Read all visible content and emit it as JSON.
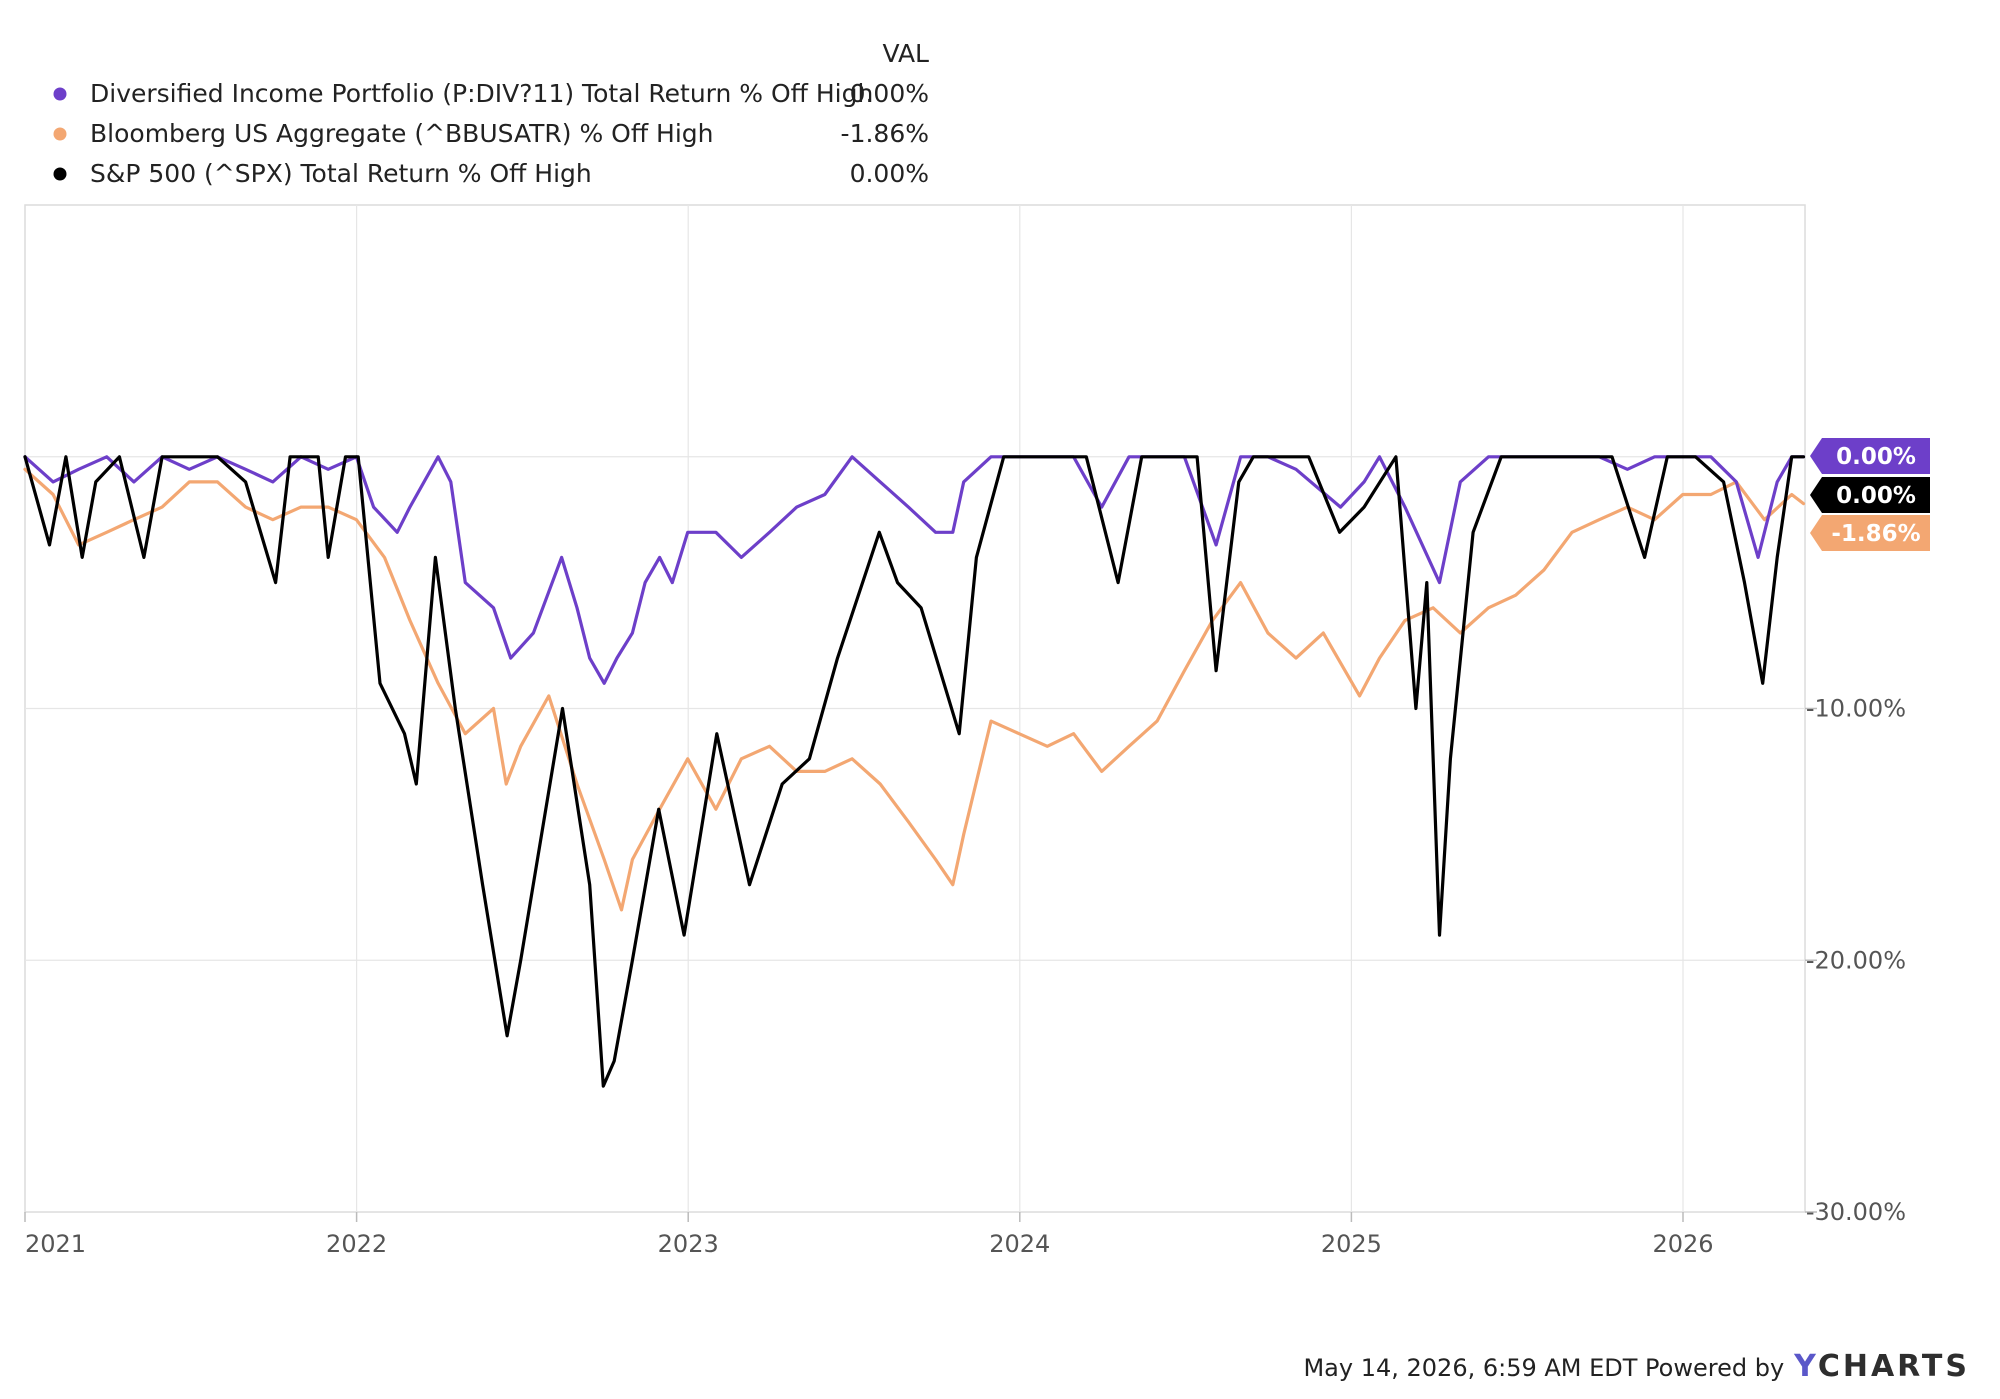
{
  "legend": {
    "header": "VAL",
    "items": [
      {
        "name": "Diversified Income Portfolio (P:DIV?11) Total Return % Off High",
        "val": "0.00%",
        "color": "#6d3fc9"
      },
      {
        "name": "Bloomberg US Aggregate (^BBUSATR) % Off High",
        "val": "-1.86%",
        "color": "#f3a772"
      },
      {
        "name": "S&P 500 (^SPX) Total Return % Off High",
        "val": "0.00%",
        "color": "#000000"
      }
    ]
  },
  "chart_data": {
    "type": "line",
    "x_axis": {
      "ticks": [
        "2021",
        "2022",
        "2023",
        "2024",
        "2025",
        "2026"
      ]
    },
    "y_axis": {
      "ticks": [
        "-10.00%",
        "-20.00%",
        "-30.00%"
      ],
      "range": [
        -30,
        10
      ],
      "grid": true
    },
    "series": [
      {
        "name": "Diversified Income Portfolio (P:DIV?11) Total Return % Off High",
        "color": "#6d3fc9",
        "end_label": "0.00%",
        "points": [
          [
            "2021-01-01",
            0
          ],
          [
            "2021-02-01",
            -1
          ],
          [
            "2021-03-01",
            -0.5
          ],
          [
            "2021-04-01",
            0
          ],
          [
            "2021-05-01",
            -1
          ],
          [
            "2021-06-01",
            0
          ],
          [
            "2021-07-01",
            -0.5
          ],
          [
            "2021-08-01",
            0
          ],
          [
            "2021-09-01",
            -0.5
          ],
          [
            "2021-10-01",
            -1
          ],
          [
            "2021-11-01",
            0
          ],
          [
            "2021-12-01",
            -0.5
          ],
          [
            "2022-01-01",
            0
          ],
          [
            "2022-01-20",
            -2
          ],
          [
            "2022-02-15",
            -3
          ],
          [
            "2022-03-01",
            -2
          ],
          [
            "2022-04-01",
            0
          ],
          [
            "2022-04-15",
            -1
          ],
          [
            "2022-05-01",
            -5
          ],
          [
            "2022-06-01",
            -6
          ],
          [
            "2022-06-20",
            -8
          ],
          [
            "2022-07-15",
            -7
          ],
          [
            "2022-08-15",
            -4
          ],
          [
            "2022-09-01",
            -6
          ],
          [
            "2022-09-15",
            -8
          ],
          [
            "2022-10-01",
            -9
          ],
          [
            "2022-10-15",
            -8
          ],
          [
            "2022-11-01",
            -7
          ],
          [
            "2022-11-15",
            -5
          ],
          [
            "2022-12-01",
            -4
          ],
          [
            "2022-12-15",
            -5
          ],
          [
            "2023-01-01",
            -3
          ],
          [
            "2023-02-01",
            -3
          ],
          [
            "2023-03-01",
            -4
          ],
          [
            "2023-04-01",
            -3
          ],
          [
            "2023-05-01",
            -2
          ],
          [
            "2023-06-01",
            -1.5
          ],
          [
            "2023-07-01",
            0
          ],
          [
            "2023-08-01",
            -1
          ],
          [
            "2023-09-01",
            -2
          ],
          [
            "2023-10-01",
            -3
          ],
          [
            "2023-10-20",
            -3
          ],
          [
            "2023-11-01",
            -1
          ],
          [
            "2023-12-01",
            0
          ],
          [
            "2024-01-01",
            0
          ],
          [
            "2024-02-01",
            0
          ],
          [
            "2024-03-01",
            0
          ],
          [
            "2024-04-01",
            -2
          ],
          [
            "2024-05-01",
            0
          ],
          [
            "2024-06-01",
            0
          ],
          [
            "2024-07-01",
            0
          ],
          [
            "2024-08-05",
            -3.5
          ],
          [
            "2024-09-01",
            0
          ],
          [
            "2024-10-01",
            0
          ],
          [
            "2024-11-01",
            -0.5
          ],
          [
            "2024-12-20",
            -2
          ],
          [
            "2025-01-15",
            -1
          ],
          [
            "2025-02-01",
            0
          ],
          [
            "2025-03-01",
            -2
          ],
          [
            "2025-04-08",
            -5
          ],
          [
            "2025-05-01",
            -1
          ],
          [
            "2025-06-01",
            0
          ],
          [
            "2025-07-01",
            0
          ],
          [
            "2025-08-01",
            0
          ],
          [
            "2025-09-01",
            0
          ],
          [
            "2025-10-01",
            0
          ],
          [
            "2025-11-01",
            -0.5
          ],
          [
            "2025-12-01",
            0
          ],
          [
            "2026-01-01",
            0
          ],
          [
            "2026-02-01",
            0
          ],
          [
            "2026-03-01",
            -1
          ],
          [
            "2026-03-25",
            -4
          ],
          [
            "2026-04-15",
            -1
          ],
          [
            "2026-05-01",
            0
          ],
          [
            "2026-05-14",
            0
          ]
        ]
      },
      {
        "name": "Bloomberg US Aggregate (^BBUSATR) % Off High",
        "color": "#f3a772",
        "end_label": "-1.86%",
        "points": [
          [
            "2021-01-01",
            -0.5
          ],
          [
            "2021-02-01",
            -1.5
          ],
          [
            "2021-03-01",
            -3.5
          ],
          [
            "2021-04-01",
            -3
          ],
          [
            "2021-05-01",
            -2.5
          ],
          [
            "2021-06-01",
            -2
          ],
          [
            "2021-07-01",
            -1
          ],
          [
            "2021-08-01",
            -1
          ],
          [
            "2021-09-01",
            -2
          ],
          [
            "2021-10-01",
            -2.5
          ],
          [
            "2021-11-01",
            -2
          ],
          [
            "2021-12-01",
            -2
          ],
          [
            "2022-01-01",
            -2.5
          ],
          [
            "2022-02-01",
            -4
          ],
          [
            "2022-03-01",
            -6.5
          ],
          [
            "2022-04-01",
            -9
          ],
          [
            "2022-05-01",
            -11
          ],
          [
            "2022-06-01",
            -10
          ],
          [
            "2022-06-15",
            -13
          ],
          [
            "2022-07-01",
            -11.5
          ],
          [
            "2022-08-01",
            -9.5
          ],
          [
            "2022-09-01",
            -13
          ],
          [
            "2022-10-01",
            -16
          ],
          [
            "2022-10-20",
            -18
          ],
          [
            "2022-11-01",
            -16
          ],
          [
            "2022-12-01",
            -14
          ],
          [
            "2023-01-01",
            -12
          ],
          [
            "2023-02-01",
            -14
          ],
          [
            "2023-03-01",
            -12
          ],
          [
            "2023-04-01",
            -11.5
          ],
          [
            "2023-05-01",
            -12.5
          ],
          [
            "2023-06-01",
            -12.5
          ],
          [
            "2023-07-01",
            -12
          ],
          [
            "2023-08-01",
            -13
          ],
          [
            "2023-09-01",
            -14.5
          ],
          [
            "2023-10-01",
            -16
          ],
          [
            "2023-10-20",
            -17
          ],
          [
            "2023-11-01",
            -15
          ],
          [
            "2023-12-01",
            -10.5
          ],
          [
            "2024-01-01",
            -11
          ],
          [
            "2024-02-01",
            -11.5
          ],
          [
            "2024-03-01",
            -11
          ],
          [
            "2024-04-01",
            -12.5
          ],
          [
            "2024-05-01",
            -11.5
          ],
          [
            "2024-06-01",
            -10.5
          ],
          [
            "2024-07-01",
            -8.5
          ],
          [
            "2024-08-01",
            -6.5
          ],
          [
            "2024-09-01",
            -5
          ],
          [
            "2024-10-01",
            -7
          ],
          [
            "2024-11-01",
            -8
          ],
          [
            "2024-12-01",
            -7
          ],
          [
            "2025-01-10",
            -9.5
          ],
          [
            "2025-02-01",
            -8
          ],
          [
            "2025-03-01",
            -6.5
          ],
          [
            "2025-04-01",
            -6
          ],
          [
            "2025-05-01",
            -7
          ],
          [
            "2025-06-01",
            -6
          ],
          [
            "2025-07-01",
            -5.5
          ],
          [
            "2025-08-01",
            -4.5
          ],
          [
            "2025-09-01",
            -3
          ],
          [
            "2025-10-01",
            -2.5
          ],
          [
            "2025-11-01",
            -2
          ],
          [
            "2025-12-01",
            -2.5
          ],
          [
            "2026-01-01",
            -1.5
          ],
          [
            "2026-02-01",
            -1.5
          ],
          [
            "2026-03-01",
            -1
          ],
          [
            "2026-04-01",
            -2.5
          ],
          [
            "2026-05-01",
            -1.5
          ],
          [
            "2026-05-14",
            -1.86
          ]
        ]
      },
      {
        "name": "S&P 500 (^SPX) Total Return % Off High",
        "color": "#000000",
        "end_label": "0.00%",
        "points": [
          [
            "2021-01-01",
            0
          ],
          [
            "2021-01-28",
            -3.5
          ],
          [
            "2021-02-15",
            0
          ],
          [
            "2021-03-05",
            -4
          ],
          [
            "2021-03-20",
            -1
          ],
          [
            "2021-04-15",
            0
          ],
          [
            "2021-05-12",
            -4
          ],
          [
            "2021-06-01",
            0
          ],
          [
            "2021-07-01",
            0
          ],
          [
            "2021-08-01",
            0
          ],
          [
            "2021-09-01",
            -1
          ],
          [
            "2021-10-04",
            -5
          ],
          [
            "2021-10-20",
            0
          ],
          [
            "2021-11-20",
            0
          ],
          [
            "2021-12-01",
            -4
          ],
          [
            "2021-12-20",
            0
          ],
          [
            "2022-01-03",
            0
          ],
          [
            "2022-01-27",
            -9
          ],
          [
            "2022-02-23",
            -11
          ],
          [
            "2022-03-08",
            -13
          ],
          [
            "2022-03-29",
            -4
          ],
          [
            "2022-04-20",
            -10
          ],
          [
            "2022-05-20",
            -17
          ],
          [
            "2022-06-16",
            -23
          ],
          [
            "2022-07-01",
            -20
          ],
          [
            "2022-08-16",
            -10
          ],
          [
            "2022-09-15",
            -17
          ],
          [
            "2022-09-30",
            -25
          ],
          [
            "2022-10-12",
            -24
          ],
          [
            "2022-11-01",
            -20
          ],
          [
            "2022-11-30",
            -14
          ],
          [
            "2022-12-28",
            -19
          ],
          [
            "2023-01-15",
            -15
          ],
          [
            "2023-02-02",
            -11
          ],
          [
            "2023-03-10",
            -17
          ],
          [
            "2023-04-15",
            -13
          ],
          [
            "2023-05-15",
            -12
          ],
          [
            "2023-06-15",
            -8
          ],
          [
            "2023-07-31",
            -3
          ],
          [
            "2023-08-20",
            -5
          ],
          [
            "2023-09-15",
            -6
          ],
          [
            "2023-10-27",
            -11
          ],
          [
            "2023-11-15",
            -4
          ],
          [
            "2023-12-15",
            0
          ],
          [
            "2024-01-15",
            0
          ],
          [
            "2024-02-15",
            0
          ],
          [
            "2024-03-15",
            0
          ],
          [
            "2024-04-19",
            -5
          ],
          [
            "2024-05-15",
            0
          ],
          [
            "2024-06-15",
            0
          ],
          [
            "2024-07-15",
            0
          ],
          [
            "2024-08-05",
            -8.5
          ],
          [
            "2024-08-30",
            -1
          ],
          [
            "2024-09-15",
            0
          ],
          [
            "2024-10-15",
            0
          ],
          [
            "2024-11-15",
            0
          ],
          [
            "2024-12-19",
            -3
          ],
          [
            "2025-01-15",
            -2
          ],
          [
            "2025-02-19",
            0
          ],
          [
            "2025-03-13",
            -10
          ],
          [
            "2025-03-25",
            -5
          ],
          [
            "2025-04-08",
            -19
          ],
          [
            "2025-04-20",
            -12
          ],
          [
            "2025-05-15",
            -3
          ],
          [
            "2025-06-15",
            0
          ],
          [
            "2025-07-15",
            0
          ],
          [
            "2025-08-15",
            0
          ],
          [
            "2025-09-15",
            0
          ],
          [
            "2025-10-15",
            0
          ],
          [
            "2025-11-20",
            -4
          ],
          [
            "2025-12-15",
            0
          ],
          [
            "2026-01-15",
            0
          ],
          [
            "2026-02-15",
            -1
          ],
          [
            "2026-03-10",
            -5
          ],
          [
            "2026-03-30",
            -9
          ],
          [
            "2026-04-15",
            -4
          ],
          [
            "2026-05-01",
            0
          ],
          [
            "2026-05-14",
            0
          ]
        ]
      }
    ]
  },
  "footer": {
    "timestamp": "May 14, 2026, 6:59 AM EDT Powered by",
    "brand_y": "Y",
    "brand_rest": "CHARTS"
  }
}
